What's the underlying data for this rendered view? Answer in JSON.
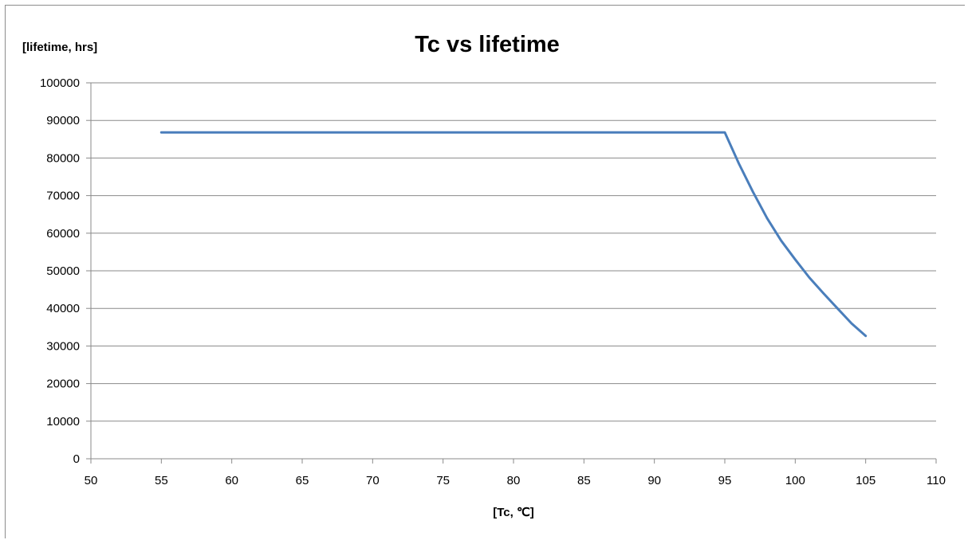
{
  "chart_data": {
    "type": "line",
    "title": "Tc vs lifetime",
    "ylabel": "[lifetime, hrs]",
    "xlabel": "[Tc, ℃]",
    "xlim": [
      50,
      110
    ],
    "ylim": [
      0,
      100000
    ],
    "x_ticks": [
      "50",
      "55",
      "60",
      "65",
      "70",
      "75",
      "80",
      "85",
      "90",
      "95",
      "100",
      "105",
      "110"
    ],
    "y_ticks": [
      "0",
      "10000",
      "20000",
      "30000",
      "40000",
      "50000",
      "60000",
      "70000",
      "80000",
      "90000",
      "100000"
    ],
    "grid": true,
    "legend": "none",
    "series_color": "#4a7ebb",
    "series": [
      {
        "x": [
          55,
          60,
          65,
          70,
          75,
          80,
          85,
          90,
          95,
          96,
          97,
          98,
          99,
          100,
          101,
          102,
          103,
          104,
          105
        ],
        "values": [
          86800,
          86800,
          86800,
          86800,
          86800,
          86800,
          86800,
          86800,
          86800,
          78500,
          71000,
          64000,
          58000,
          53000,
          48200,
          44000,
          40000,
          36000,
          32700
        ]
      }
    ]
  }
}
